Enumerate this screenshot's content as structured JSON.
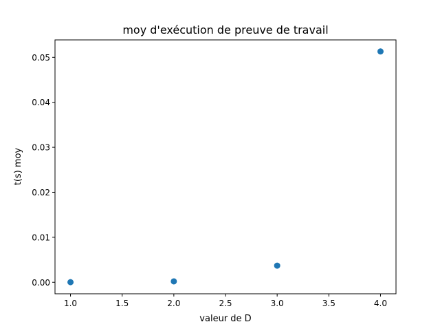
{
  "chart_data": {
    "type": "scatter",
    "title": "moy d'exécution de preuve de travail",
    "xlabel": "valeur de D",
    "ylabel": "t(s) moy",
    "x": [
      1.0,
      2.0,
      3.0,
      4.0
    ],
    "y": [
      2e-05,
      0.0002,
      0.0037,
      0.0513
    ],
    "xlim": [
      0.85,
      4.15
    ],
    "ylim": [
      -0.00256,
      0.05387
    ],
    "xticks": [
      1.0,
      1.5,
      2.0,
      2.5,
      3.0,
      3.5,
      4.0
    ],
    "xtick_labels": [
      "1.0",
      "1.5",
      "2.0",
      "2.5",
      "3.0",
      "3.5",
      "4.0"
    ],
    "yticks": [
      0.0,
      0.01,
      0.02,
      0.03,
      0.04,
      0.05
    ],
    "ytick_labels": [
      "0.00",
      "0.01",
      "0.02",
      "0.03",
      "0.04",
      "0.05"
    ],
    "grid": false,
    "marker_color": "#1f77b4"
  }
}
